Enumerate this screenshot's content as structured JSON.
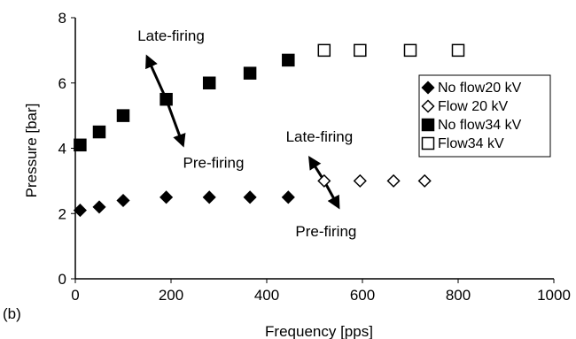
{
  "chart_data": {
    "type": "scatter",
    "panel_label": "(b)",
    "xlabel": "Frequency [pps]",
    "ylabel": "Pressure [bar]",
    "xlim": [
      0,
      1000
    ],
    "ylim": [
      0,
      8
    ],
    "xticks": [
      0,
      200,
      400,
      600,
      800,
      1000
    ],
    "yticks": [
      0,
      2,
      4,
      6,
      8
    ],
    "grid": false,
    "legend_position": "right",
    "series": [
      {
        "name": "No flow20 kV",
        "marker": "diamond-filled",
        "points": [
          [
            10,
            2.1
          ],
          [
            50,
            2.2
          ],
          [
            100,
            2.4
          ],
          [
            190,
            2.5
          ],
          [
            280,
            2.5
          ],
          [
            365,
            2.5
          ],
          [
            445,
            2.5
          ]
        ]
      },
      {
        "name": "Flow 20 kV",
        "marker": "diamond-open",
        "points": [
          [
            520,
            3.0
          ],
          [
            595,
            3.0
          ],
          [
            665,
            3.0
          ],
          [
            730,
            3.0
          ]
        ]
      },
      {
        "name": "No flow34 kV",
        "marker": "square-filled",
        "points": [
          [
            10,
            4.1
          ],
          [
            50,
            4.5
          ],
          [
            100,
            5.0
          ],
          [
            190,
            5.5
          ],
          [
            280,
            6.0
          ],
          [
            365,
            6.3
          ],
          [
            445,
            6.7
          ]
        ]
      },
      {
        "name": "Flow34 kV",
        "marker": "square-open",
        "points": [
          [
            520,
            7.0
          ],
          [
            595,
            7.0
          ],
          [
            700,
            7.0
          ],
          [
            800,
            7.0
          ]
        ]
      }
    ],
    "annotations": [
      {
        "text": "Late-firing",
        "x": 130,
        "y": 7.3
      },
      {
        "text": "Pre-firing",
        "x": 225,
        "y": 3.4
      },
      {
        "text": "Late-firing",
        "x": 440,
        "y": 4.2
      },
      {
        "text": "Pre-firing",
        "x": 460,
        "y": 1.3
      }
    ],
    "arrows": [
      {
        "from": [
          190,
          5.5
        ],
        "to": [
          150,
          6.8
        ]
      },
      {
        "from": [
          190,
          5.5
        ],
        "to": [
          225,
          4.1
        ]
      },
      {
        "from": [
          520,
          3.0
        ],
        "to": [
          490,
          3.7
        ]
      },
      {
        "from": [
          520,
          3.0
        ],
        "to": [
          550,
          2.2
        ]
      }
    ]
  }
}
